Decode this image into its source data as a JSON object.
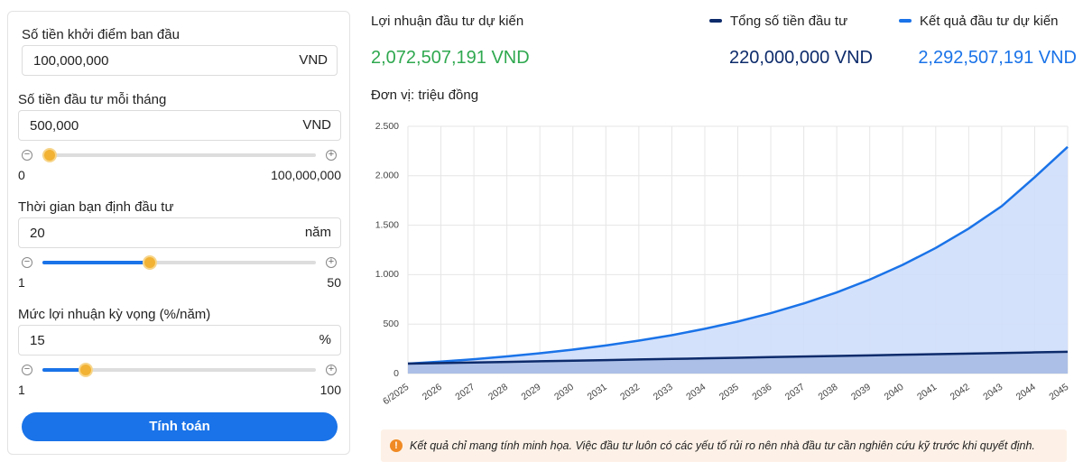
{
  "form": {
    "fields": [
      {
        "label": "Số tiền khởi điểm ban đầu",
        "value": "100,000,000",
        "unit": "VND"
      },
      {
        "label": "Số tiền đầu tư mỗi tháng",
        "value": "500,000",
        "unit": "VND",
        "min": "0",
        "max": "100,000,000"
      },
      {
        "label": "Thời gian bạn định đầu tư",
        "value": "20",
        "unit": "năm",
        "min": "1",
        "max": "50"
      },
      {
        "label": "Mức lợi nhuận kỳ vọng (%/năm)",
        "value": "15",
        "unit": "%",
        "min": "1",
        "max": "100"
      }
    ],
    "button": "Tính toán"
  },
  "summary": {
    "profit_label": "Lợi nhuận đầu tư dự kiến",
    "profit_value": "2,072,507,191 VND",
    "total_invested_value": "220,000,000 VND",
    "result_value": "2,292,507,191 VND",
    "unit_note": "Đơn vị: triệu đồng"
  },
  "chart_data": {
    "type": "area",
    "categories": [
      "6/2025",
      "2026",
      "2027",
      "2028",
      "2029",
      "2030",
      "2031",
      "2032",
      "2033",
      "2034",
      "2035",
      "2036",
      "2037",
      "2038",
      "2039",
      "2040",
      "2041",
      "2042",
      "2043",
      "2044",
      "2045"
    ],
    "series": [
      {
        "name": "Kết quả đầu tư dự kiến",
        "color": "#1a73e8",
        "fill": "#cfdefb",
        "values": [
          100,
          121,
          145,
          173,
          205,
          242,
          284,
          333,
          388,
          453,
          526,
          611,
          709,
          821,
          950,
          1099,
          1270,
          1466,
          1692,
          1985,
          2292
        ]
      },
      {
        "name": "Tổng số tiền đầu tư",
        "color": "#0d2b6b",
        "fill": "#a7bbe3",
        "values": [
          100,
          106,
          112,
          118,
          124,
          130,
          136,
          142,
          148,
          154,
          160,
          166,
          172,
          178,
          184,
          190,
          196,
          202,
          208,
          214,
          220
        ]
      }
    ],
    "ylim": [
      0,
      2500
    ],
    "yticks": [
      0,
      500,
      {
        "value": 1000,
        "label": "1.000"
      },
      {
        "value": 1500,
        "label": "1.500"
      },
      {
        "value": 2000,
        "label": "2.000"
      },
      {
        "value": 2500,
        "label": "2.500"
      }
    ],
    "grid": true
  },
  "note": "Kết quả chỉ mang tính minh họa. Việc đầu tư luôn có các yếu tố rủi ro nên nhà đầu tư cần nghiên cứu kỹ trước khi quyết định."
}
